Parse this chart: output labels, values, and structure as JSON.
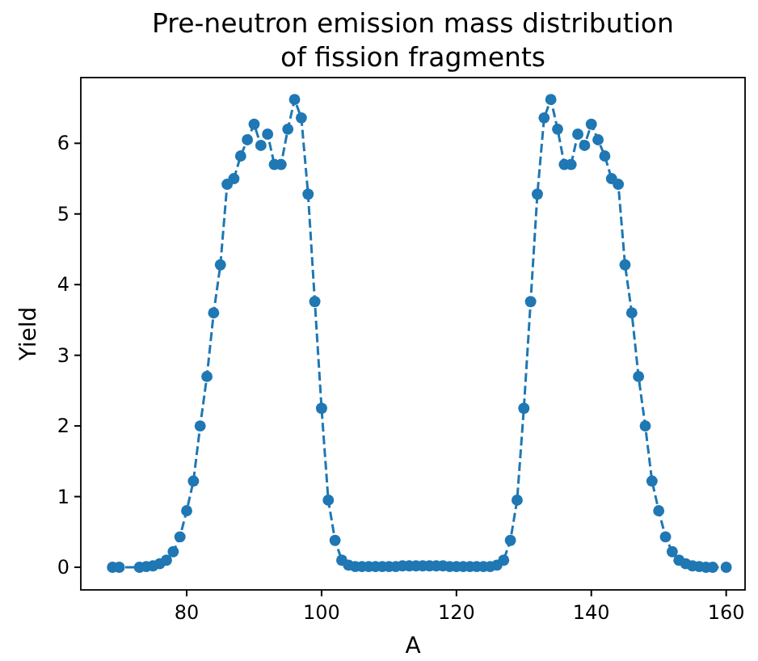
{
  "chart_data": {
    "type": "line",
    "title": "Pre-neutron emission mass distribution\nof fission fragments",
    "xlabel": "A",
    "ylabel": "Yield",
    "x": [
      69,
      70,
      73,
      74,
      75,
      76,
      77,
      78,
      79,
      80,
      81,
      82,
      83,
      84,
      85,
      86,
      87,
      88,
      89,
      90,
      91,
      92,
      93,
      94,
      95,
      96,
      97,
      98,
      99,
      100,
      101,
      102,
      103,
      104,
      105,
      106,
      107,
      108,
      109,
      110,
      111,
      112,
      113,
      114,
      115,
      116,
      117,
      118,
      119,
      120,
      121,
      122,
      123,
      124,
      125,
      126,
      127,
      128,
      129,
      130,
      131,
      132,
      133,
      134,
      135,
      136,
      137,
      138,
      139,
      140,
      141,
      142,
      143,
      144,
      145,
      146,
      147,
      148,
      149,
      150,
      151,
      152,
      153,
      154,
      155,
      156,
      157,
      158,
      160
    ],
    "series": [
      {
        "color": "#1f77b4",
        "values": [
          0,
          0,
          0,
          0.01,
          0.02,
          0.05,
          0.1,
          0.22,
          0.43,
          0.8,
          1.22,
          2.0,
          2.7,
          3.6,
          4.28,
          5.42,
          5.5,
          5.82,
          6.05,
          6.27,
          5.97,
          6.13,
          5.7,
          5.7,
          6.2,
          6.62,
          6.36,
          5.28,
          3.76,
          2.25,
          0.95,
          0.38,
          0.1,
          0.03,
          0.01,
          0.01,
          0.01,
          0.01,
          0.01,
          0.01,
          0.01,
          0.02,
          0.02,
          0.02,
          0.02,
          0.02,
          0.02,
          0.02,
          0.01,
          0.01,
          0.01,
          0.01,
          0.01,
          0.01,
          0.01,
          0.03,
          0.1,
          0.38,
          0.95,
          2.25,
          3.76,
          5.28,
          6.36,
          6.62,
          6.2,
          5.7,
          5.7,
          6.13,
          5.97,
          6.27,
          6.05,
          5.82,
          5.5,
          5.42,
          4.28,
          3.6,
          2.7,
          2.0,
          1.22,
          0.8,
          0.43,
          0.22,
          0.1,
          0.05,
          0.02,
          0.01,
          0,
          0,
          0
        ]
      }
    ],
    "xlim": [
      64.3,
      162.8
    ],
    "ylim": [
      -0.32,
      6.93
    ],
    "xticks": [
      80,
      100,
      120,
      140,
      160
    ],
    "yticks": [
      0,
      1,
      2,
      3,
      4,
      5,
      6
    ],
    "marker": "circle",
    "line_style": "dashed"
  }
}
